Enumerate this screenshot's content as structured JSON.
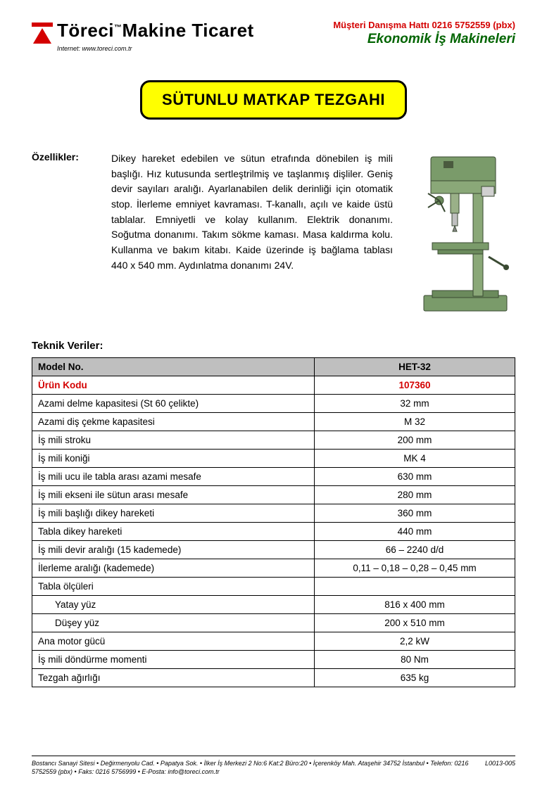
{
  "header": {
    "company_html": "Töreci<span class='tm'>™</span>Makine Ticaret",
    "internet_label": "Internet: www.toreci.com.tr",
    "hotline": "Müşteri Danışma Hattı 0216 5752559 (pbx)",
    "tagline": "Ekonomik İş Makineleri"
  },
  "title": "SÜTUNLU MATKAP TEZGAHI",
  "features": {
    "label": "Özellikler:",
    "text": "Dikey hareket edebilen ve sütun etrafında dönebilen iş mili başlığı. Hız kutusunda sertleştrilmiş ve taşlanmış dişliler. Geniş devir sayıları aralığı. Ayarlanabilen delik derinliği için otomatik stop. İlerleme emniyet kavraması. T-kanallı, açılı ve kaide üstü tablalar. Emniyetli ve kolay kullanım. Elektrik donanımı. Soğutma donanımı. Takım sökme kaması. Masa kaldırma kolu. Kullanma ve bakım kitabı. Kaide üzerinde iş bağlama tablası 440 x 540 mm. Aydınlatma donanımı 24V."
  },
  "tech_heading": "Teknik Veriler:",
  "table": {
    "columns_widths": [
      "auto",
      "285px"
    ],
    "rows": [
      {
        "label": "Model No.",
        "value": "HET-32",
        "head": true
      },
      {
        "label": "Ürün Kodu",
        "value": "107360",
        "red": true
      },
      {
        "label": "Azami delme kapasitesi (St 60 çelikte)",
        "value": "32 mm"
      },
      {
        "label": "Azami diş çekme kapasitesi",
        "value": "M 32"
      },
      {
        "label": "İş mili stroku",
        "value": "200 mm"
      },
      {
        "label": "İş mili koniği",
        "value": "MK 4"
      },
      {
        "label": "İş mili ucu ile tabla arası azami mesafe",
        "value": "630 mm"
      },
      {
        "label": "İş mili ekseni ile sütun arası mesafe",
        "value": "280 mm"
      },
      {
        "label": "İş mili başlığı dikey hareketi",
        "value": "360 mm"
      },
      {
        "label": "Tabla dikey hareketi",
        "value": "440 mm"
      },
      {
        "label": "İş mili devir aralığı (15 kademede)",
        "value": "66 – 2240 d/d"
      },
      {
        "label": "İlerleme aralığı (kademede)",
        "value": "0,11 – 0,18 – 0,28 – 0,45 mm"
      },
      {
        "label": "Tabla ölçüleri",
        "value": ""
      },
      {
        "label": "Yatay yüz",
        "value": "816 x 400 mm",
        "indent": true
      },
      {
        "label": "Düşey yüz",
        "value": "200 x 510 mm",
        "indent": true
      },
      {
        "label": "Ana motor gücü",
        "value": "2,2 kW"
      },
      {
        "label": "İş mili döndürme momenti",
        "value": "80 Nm"
      },
      {
        "label": "Tezgah ağırlığı",
        "value": "635 kg"
      }
    ]
  },
  "footer": {
    "address": "Bostancı Sanayi Sitesi • Değirmenyolu Cad. • Papatya Sok. • İlker İş Merkezi 2 No:6 Kat:2 Büro:20 • İçerenköy Mah. Ataşehir 34752 İstanbul • Telefon: 0216 5752559 (pbx) • Faks: 0216 5756999 • E-Posta: info@toreci.com.tr",
    "doc_code": "L0013-005"
  },
  "colors": {
    "brand_red": "#d40000",
    "brand_green": "#006400",
    "banner_yellow": "#ffff00",
    "table_head_bg": "#bfbfbf",
    "machine_green": "#7a9b6a"
  }
}
